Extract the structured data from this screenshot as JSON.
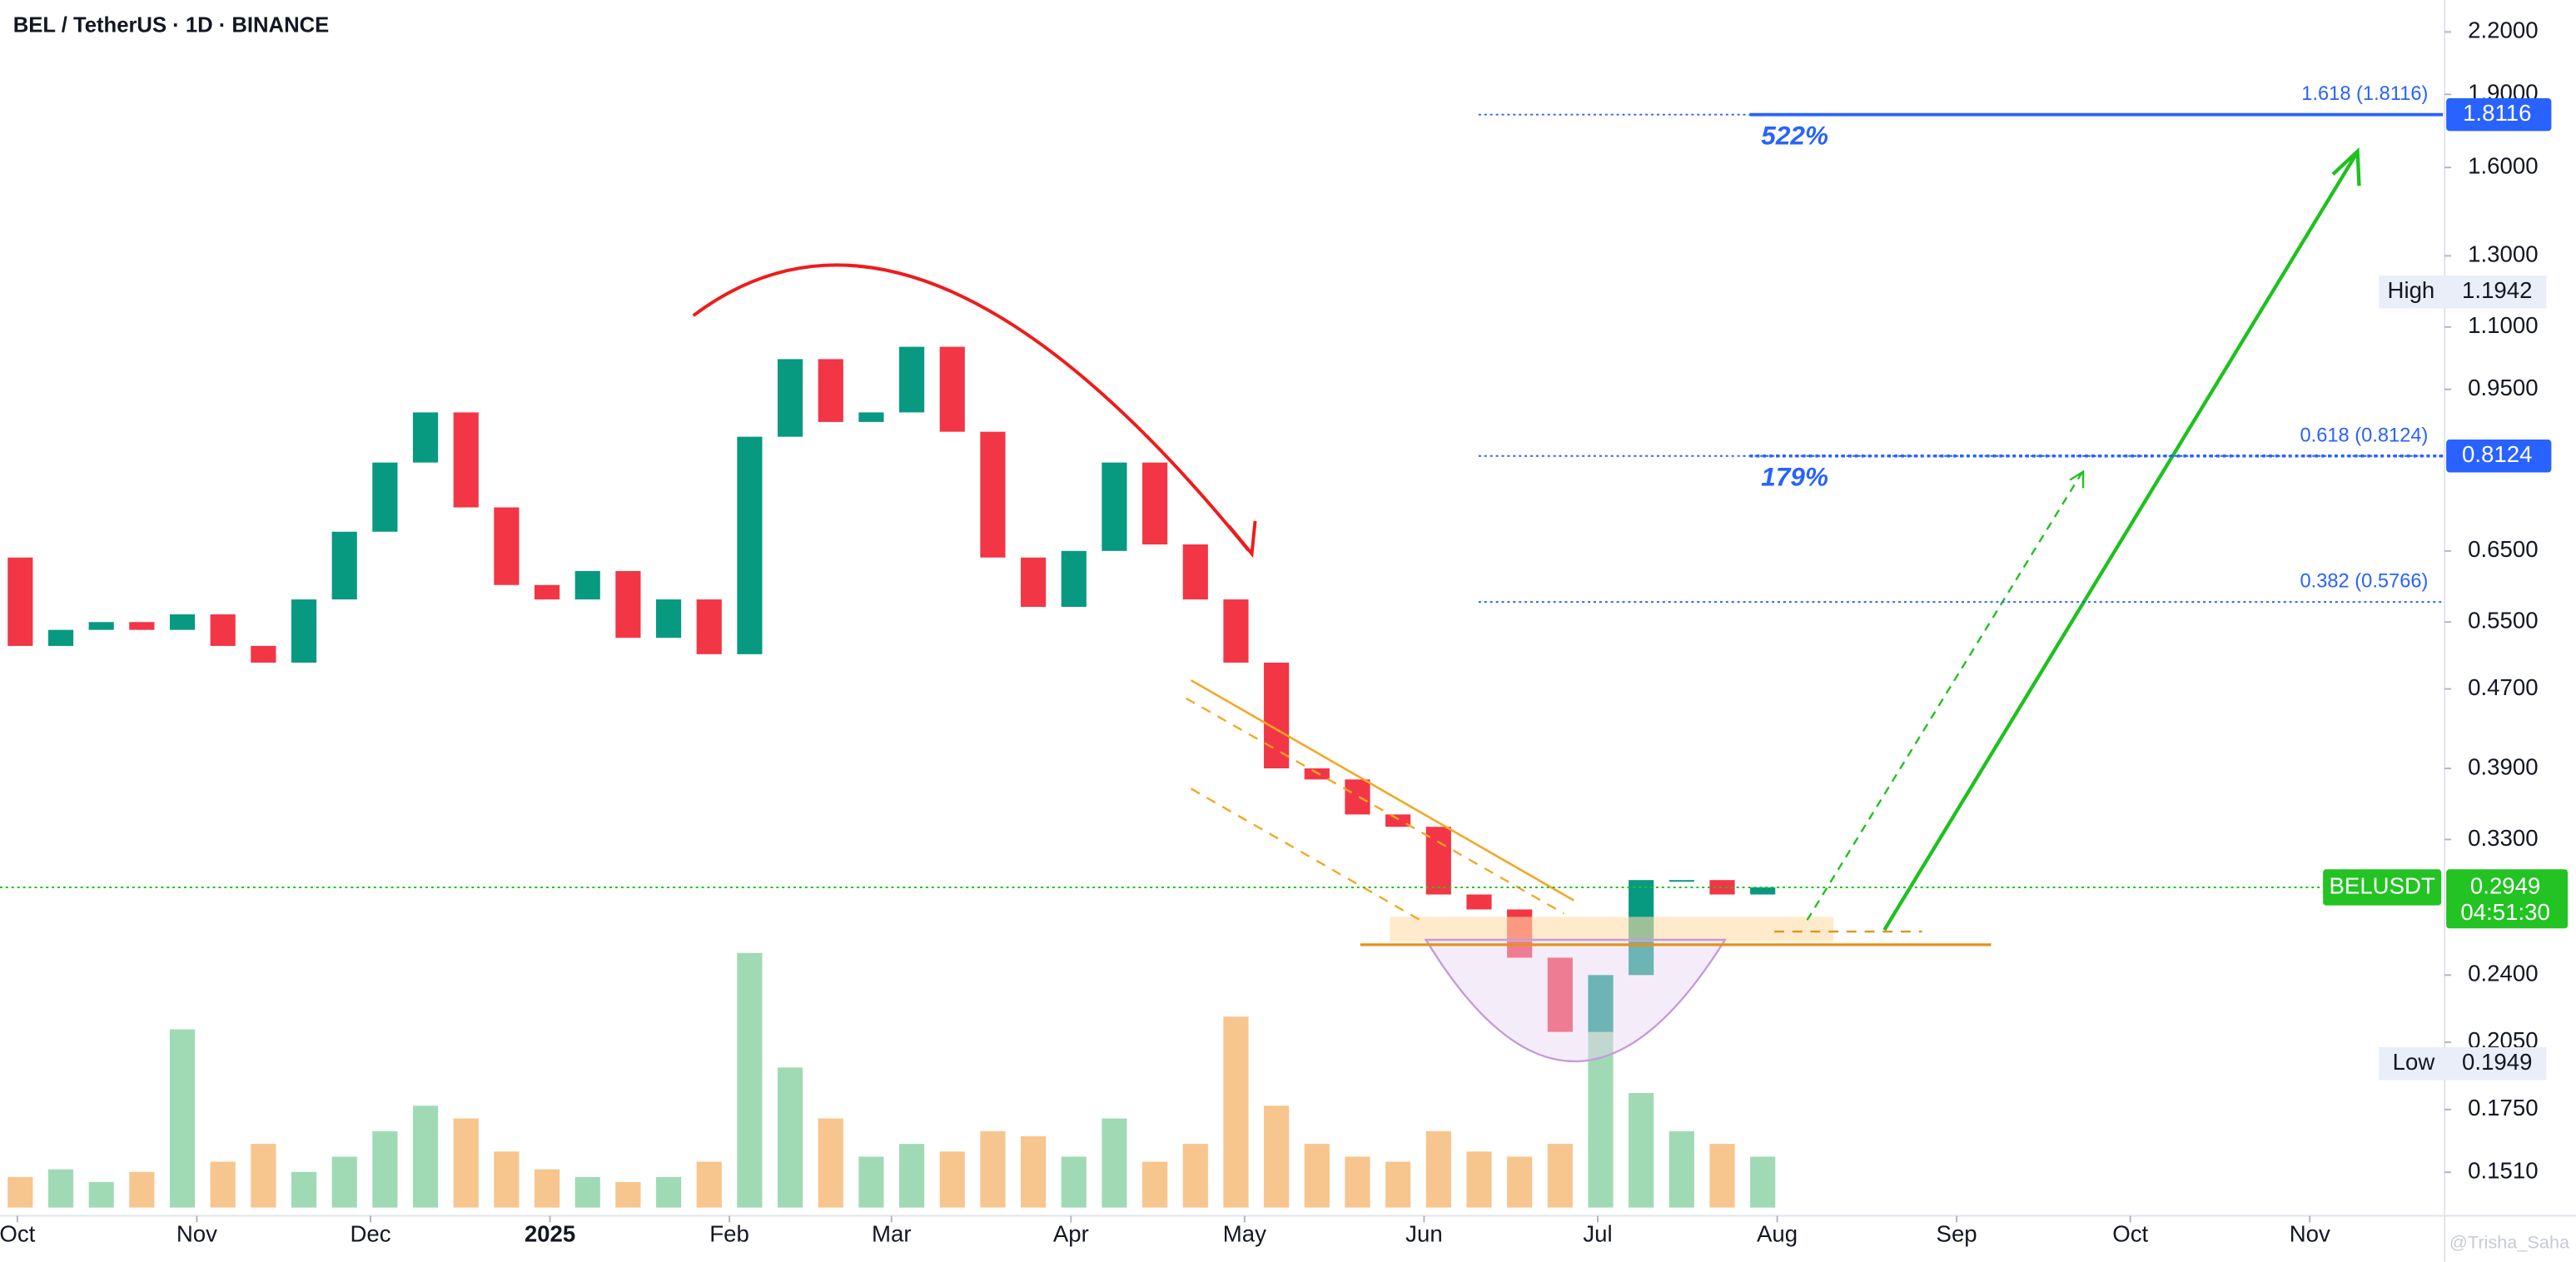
{
  "chart_data": {
    "type": "candlestick",
    "title": "BEL / TetherUS · 1D · BINANCE",
    "log_scale": true,
    "up_color": "#089981",
    "down_color": "#f23645",
    "volume_up_color": "#8fd4a8",
    "volume_down_color": "#f6bb7a",
    "xlim": [
      -3,
      419
    ],
    "xticks": [
      {
        "value": 0,
        "label": "Oct"
      },
      {
        "value": 31,
        "label": "Nov"
      },
      {
        "value": 61,
        "label": "Dec"
      },
      {
        "value": 92,
        "label": "2025"
      },
      {
        "value": 123,
        "label": "Feb"
      },
      {
        "value": 151,
        "label": "Mar"
      },
      {
        "value": 182,
        "label": "Apr"
      },
      {
        "value": 212,
        "label": "May"
      },
      {
        "value": 243,
        "label": "Jun"
      },
      {
        "value": 273,
        "label": "Jul"
      },
      {
        "value": 304,
        "label": "Aug"
      },
      {
        "value": 335,
        "label": "Sep"
      },
      {
        "value": 365,
        "label": "Oct"
      },
      {
        "value": 396,
        "label": "Nov"
      }
    ],
    "ylim": [
      0.139,
      2.37
    ],
    "yticks": [
      {
        "value": 2.2,
        "label": "2.2000"
      },
      {
        "value": 1.9,
        "label": "1.9000"
      },
      {
        "value": 1.6,
        "label": "1.6000"
      },
      {
        "value": 1.3,
        "label": "1.3000"
      },
      {
        "value": 1.1,
        "label": "1.1000"
      },
      {
        "value": 0.95,
        "label": "0.9500"
      },
      {
        "value": 0.65,
        "label": "0.6500"
      },
      {
        "value": 0.55,
        "label": "0.5500"
      },
      {
        "value": 0.47,
        "label": "0.4700"
      },
      {
        "value": 0.39,
        "label": "0.3900"
      },
      {
        "value": 0.33,
        "label": "0.3300"
      },
      {
        "value": 0.24,
        "label": "0.2400"
      },
      {
        "value": 0.205,
        "label": "0.2050"
      },
      {
        "value": 0.175,
        "label": "0.1750"
      },
      {
        "value": 0.151,
        "label": "0.1510"
      }
    ],
    "x": [
      -3,
      4,
      11,
      18,
      25,
      32,
      39,
      46,
      53,
      60,
      67,
      74,
      81,
      88,
      95,
      102,
      109,
      116,
      123,
      130,
      137,
      144,
      151,
      158,
      165,
      172,
      179,
      186,
      193,
      200,
      207,
      214,
      221,
      228,
      235,
      242,
      249,
      256,
      263,
      270,
      277,
      284,
      291,
      298
    ],
    "open": [
      0.64,
      0.52,
      0.54,
      0.55,
      0.54,
      0.56,
      0.52,
      0.5,
      0.58,
      0.68,
      0.8,
      0.9,
      0.72,
      0.6,
      0.58,
      0.62,
      0.53,
      0.58,
      0.51,
      0.85,
      1.02,
      0.88,
      0.9,
      1.05,
      0.86,
      0.64,
      0.57,
      0.65,
      0.8,
      0.66,
      0.58,
      0.5,
      0.39,
      0.38,
      0.35,
      0.34,
      0.29,
      0.28,
      0.25,
      0.21,
      0.24,
      0.3,
      0.3,
      0.29
    ],
    "high": {
      "label": "High",
      "value": 1.1942
    },
    "low": {
      "label": "Low",
      "value": 0.1949
    },
    "close": [
      0.52,
      0.54,
      0.55,
      0.54,
      0.56,
      0.52,
      0.5,
      0.58,
      0.68,
      0.8,
      0.9,
      0.72,
      0.6,
      0.58,
      0.62,
      0.53,
      0.58,
      0.51,
      0.85,
      1.02,
      0.88,
      0.9,
      1.05,
      0.86,
      0.64,
      0.57,
      0.65,
      0.8,
      0.66,
      0.58,
      0.5,
      0.39,
      0.38,
      0.35,
      0.34,
      0.29,
      0.28,
      0.25,
      0.21,
      0.24,
      0.3,
      0.3,
      0.29,
      0.2949
    ],
    "volume": [
      12,
      15,
      10,
      14,
      70,
      18,
      25,
      14,
      20,
      30,
      40,
      35,
      22,
      15,
      12,
      10,
      12,
      18,
      100,
      55,
      35,
      20,
      25,
      22,
      30,
      28,
      20,
      35,
      18,
      25,
      75,
      40,
      25,
      20,
      18,
      30,
      22,
      20,
      25,
      90,
      45,
      30,
      25,
      20
    ],
    "volume_max": 100,
    "fib_levels": [
      {
        "label": "1.618 (1.8116)",
        "value": 1.8116,
        "gain_label": "522%"
      },
      {
        "label": "0.618 (0.8124)",
        "value": 0.8124,
        "gain_label": "179%"
      },
      {
        "label": "0.382 (0.5766)",
        "value": 0.5766
      }
    ],
    "fib_color": "#2962ff",
    "last_price": {
      "name": "BELUSDT",
      "value": 0.2949,
      "countdown": "04:51:30",
      "color": "#22c322"
    },
    "watermark": "@Trisha_Saha"
  }
}
